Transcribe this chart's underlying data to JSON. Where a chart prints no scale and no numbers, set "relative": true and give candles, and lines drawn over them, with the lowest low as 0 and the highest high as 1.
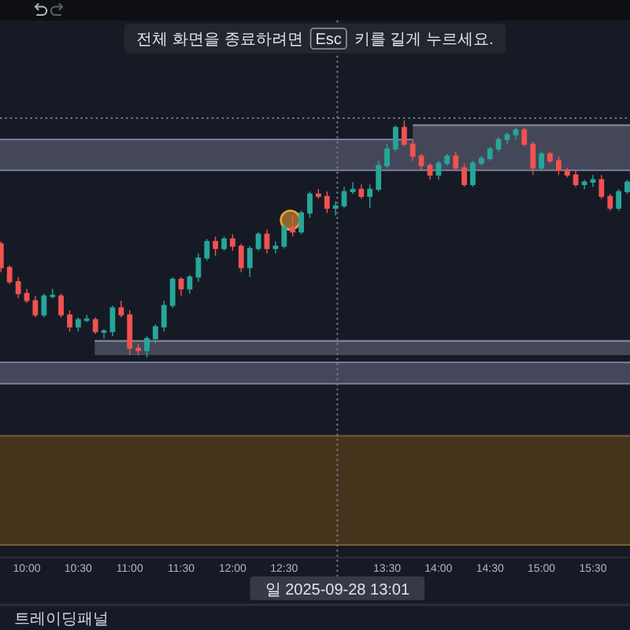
{
  "chart_data": {
    "type": "candlestick",
    "relative": true,
    "xlim": [
      9.74,
      15.86
    ],
    "xticks": [
      {
        "value": 10,
        "label": "10:00"
      },
      {
        "value": 10.5,
        "label": "10:30"
      },
      {
        "value": 11,
        "label": "11:00"
      },
      {
        "value": 11.5,
        "label": "11:30"
      },
      {
        "value": 12,
        "label": "12:00"
      },
      {
        "value": 12.5,
        "label": "12:30"
      },
      {
        "value": 13.5,
        "label": "13:30"
      },
      {
        "value": 14,
        "label": "14:00"
      },
      {
        "value": 14.5,
        "label": "14:30"
      },
      {
        "value": 15,
        "label": "15:00"
      },
      {
        "value": 15.5,
        "label": "15:30"
      }
    ],
    "series": [
      {
        "type": "candlestick",
        "x": [
          9.75,
          9.833,
          9.917,
          10,
          10.083,
          10.167,
          10.25,
          10.333,
          10.417,
          10.5,
          10.583,
          10.667,
          10.75,
          10.833,
          10.917,
          11,
          11.083,
          11.167,
          11.25,
          11.333,
          11.417,
          11.5,
          11.583,
          11.667,
          11.75,
          11.833,
          11.917,
          12,
          12.083,
          12.167,
          12.25,
          12.333,
          12.417,
          12.5,
          12.583,
          12.667,
          12.75,
          12.833,
          12.917,
          13,
          13.083,
          13.167,
          13.25,
          13.333,
          13.417,
          13.5,
          13.583,
          13.667,
          13.75,
          13.833,
          13.917,
          14,
          14.083,
          14.167,
          14.25,
          14.333,
          14.417,
          14.5,
          14.583,
          14.667,
          14.75,
          14.833,
          14.917,
          15,
          15.083,
          15.167,
          15.25,
          15.333,
          15.417,
          15.5,
          15.583,
          15.667,
          15.75,
          15.833
        ],
        "ohlc": [
          [
            0.48,
            0.49,
            0.36,
            0.38
          ],
          [
            0.38,
            0.39,
            0.31,
            0.32
          ],
          [
            0.32,
            0.34,
            0.25,
            0.27
          ],
          [
            0.27,
            0.29,
            0.23,
            0.24
          ],
          [
            0.24,
            0.26,
            0.17,
            0.18
          ],
          [
            0.18,
            0.27,
            0.17,
            0.26
          ],
          [
            0.26,
            0.29,
            0.25,
            0.26
          ],
          [
            0.26,
            0.27,
            0.17,
            0.18
          ],
          [
            0.18,
            0.2,
            0.11,
            0.13
          ],
          [
            0.13,
            0.17,
            0.11,
            0.16
          ],
          [
            0.16,
            0.18,
            0.15,
            0.16
          ],
          [
            0.16,
            0.17,
            0.1,
            0.11
          ],
          [
            0.11,
            0.12,
            0.08,
            0.11
          ],
          [
            0.11,
            0.22,
            0.09,
            0.21
          ],
          [
            0.21,
            0.24,
            0.17,
            0.18
          ],
          [
            0.18,
            0.2,
            0.01,
            0.04
          ],
          [
            0.04,
            0.06,
            0.01,
            0.03
          ],
          [
            0.03,
            0.09,
            0,
            0.08
          ],
          [
            0.08,
            0.14,
            0.06,
            0.13
          ],
          [
            0.13,
            0.24,
            0.11,
            0.22
          ],
          [
            0.22,
            0.34,
            0.21,
            0.33
          ],
          [
            0.33,
            0.34,
            0.26,
            0.29
          ],
          [
            0.29,
            0.35,
            0.27,
            0.34
          ],
          [
            0.34,
            0.44,
            0.32,
            0.42
          ],
          [
            0.42,
            0.5,
            0.41,
            0.49
          ],
          [
            0.49,
            0.51,
            0.43,
            0.46
          ],
          [
            0.46,
            0.51,
            0.45,
            0.5
          ],
          [
            0.5,
            0.52,
            0.45,
            0.47
          ],
          [
            0.47,
            0.48,
            0.36,
            0.38
          ],
          [
            0.38,
            0.47,
            0.34,
            0.46
          ],
          [
            0.46,
            0.53,
            0.45,
            0.52
          ],
          [
            0.52,
            0.54,
            0.44,
            0.46
          ],
          [
            0.46,
            0.49,
            0.44,
            0.47
          ],
          [
            0.47,
            0.56,
            0.46,
            0.55
          ],
          [
            0.55,
            0.6,
            0.51,
            0.53
          ],
          [
            0.53,
            0.62,
            0.52,
            0.61
          ],
          [
            0.61,
            0.7,
            0.59,
            0.69
          ],
          [
            0.69,
            0.71,
            0.67,
            0.68
          ],
          [
            0.68,
            0.7,
            0.61,
            0.63
          ],
          [
            0.63,
            0.66,
            0.6,
            0.64
          ],
          [
            0.64,
            0.72,
            0.63,
            0.7
          ],
          [
            0.7,
            0.74,
            0.69,
            0.71
          ],
          [
            0.71,
            0.73,
            0.67,
            0.68
          ],
          [
            0.68,
            0.73,
            0.63,
            0.71
          ],
          [
            0.71,
            0.83,
            0.7,
            0.81
          ],
          [
            0.81,
            0.9,
            0.8,
            0.88
          ],
          [
            0.88,
            0.98,
            0.87,
            0.97
          ],
          [
            0.97,
            1,
            0.89,
            0.9
          ],
          [
            0.9,
            0.92,
            0.83,
            0.85
          ],
          [
            0.85,
            0.86,
            0.79,
            0.81
          ],
          [
            0.81,
            0.82,
            0.75,
            0.77
          ],
          [
            0.77,
            0.83,
            0.75,
            0.82
          ],
          [
            0.82,
            0.86,
            0.81,
            0.85
          ],
          [
            0.85,
            0.87,
            0.79,
            0.8
          ],
          [
            0.8,
            0.82,
            0.72,
            0.73
          ],
          [
            0.73,
            0.83,
            0.72,
            0.82
          ],
          [
            0.82,
            0.85,
            0.81,
            0.84
          ],
          [
            0.84,
            0.89,
            0.83,
            0.88
          ],
          [
            0.88,
            0.93,
            0.87,
            0.92
          ],
          [
            0.92,
            0.95,
            0.9,
            0.94
          ],
          [
            0.94,
            0.97,
            0.92,
            0.96
          ],
          [
            0.96,
            0.97,
            0.89,
            0.9
          ],
          [
            0.9,
            0.91,
            0.77,
            0.8
          ],
          [
            0.8,
            0.87,
            0.79,
            0.86
          ],
          [
            0.86,
            0.87,
            0.82,
            0.83
          ],
          [
            0.83,
            0.85,
            0.77,
            0.79
          ],
          [
            0.79,
            0.8,
            0.76,
            0.77
          ],
          [
            0.77,
            0.79,
            0.72,
            0.73
          ],
          [
            0.73,
            0.75,
            0.71,
            0.74
          ],
          [
            0.74,
            0.77,
            0.72,
            0.75
          ],
          [
            0.75,
            0.77,
            0.67,
            0.68
          ],
          [
            0.68,
            0.69,
            0.62,
            0.63
          ],
          [
            0.63,
            0.71,
            0.62,
            0.7
          ],
          [
            0.7,
            0.75,
            0.69,
            0.74
          ]
        ],
        "colors": [
          "#ef5350",
          "#ef5350",
          "#ef5350",
          "#ef5350",
          "#ef5350",
          "#26a69a",
          "#26a69a",
          "#ef5350",
          "#ef5350",
          "#26a69a",
          "#26a69a",
          "#ef5350",
          "#26a69a",
          "#26a69a",
          "#ef5350",
          "#ef5350",
          "#ef5350",
          "#26a69a",
          "#26a69a",
          "#26a69a",
          "#26a69a",
          "#ef5350",
          "#26a69a",
          "#26a69a",
          "#26a69a",
          "#ef5350",
          "#26a69a",
          "#ef5350",
          "#ef5350",
          "#26a69a",
          "#26a69a",
          "#ef5350",
          "#26a69a",
          "#26a69a",
          "#ef5350",
          "#26a69a",
          "#26a69a",
          "#ef5350",
          "#ef5350",
          "#26a69a",
          "#26a69a",
          "#26a69a",
          "#ef5350",
          "#26a69a",
          "#26a69a",
          "#26a69a",
          "#26a69a",
          "#ef5350",
          "#ef5350",
          "#ef5350",
          "#ef5350",
          "#26a69a",
          "#26a69a",
          "#ef5350",
          "#ef5350",
          "#26a69a",
          "#26a69a",
          "#26a69a",
          "#26a69a",
          "#26a69a",
          "#26a69a",
          "#ef5350",
          "#ef5350",
          "#26a69a",
          "#ef5350",
          "#ef5350",
          "#ef5350",
          "#ef5350",
          "#26a69a",
          "#26a69a",
          "#ef5350",
          "#ef5350",
          "#26a69a",
          "#26a69a"
        ]
      },
      {
        "type": "line",
        "x": [
          13.75,
          15.86
        ],
        "values": [
          0.98,
          0.98
        ],
        "lower": [
          0.86,
          0.86
        ],
        "upper": [
          0.98,
          0.98
        ],
        "color": "#7b7f94"
      },
      {
        "type": "line",
        "x": [
          10.66,
          15.86
        ],
        "values": [
          0.07,
          0.07
        ],
        "lower": [
          0.01,
          0.01
        ],
        "upper": [
          0.07,
          0.07
        ],
        "color": "#7b7f94"
      },
      {
        "type": "scatter",
        "x": [
          12.56
        ],
        "values": [
          0.58
        ],
        "color": "#f0a535",
        "marker": "circle"
      }
    ],
    "bands": [
      {
        "axis": "y",
        "from": 0.79,
        "to": 0.92,
        "color": "#44475a"
      },
      {
        "axis": "y",
        "from": -0.11,
        "to": -0.02,
        "color": "#44475a"
      },
      {
        "axis": "y",
        "from": -0.79,
        "to": -0.33,
        "color": "#45331c"
      }
    ],
    "ref_lines": [
      {
        "axis": "x",
        "value": 13.017,
        "label": "일 2025-09-28 13:01",
        "line_style": "dotted",
        "color": "#787b86"
      },
      {
        "axis": "y",
        "value": 1.01,
        "line_style": "dotted",
        "color": "#787b86"
      }
    ],
    "annotations": [
      "전체 화면을 종료하려면",
      "Esc",
      "키를 길게 누르세요.",
      "트레이딩패널"
    ]
  }
}
